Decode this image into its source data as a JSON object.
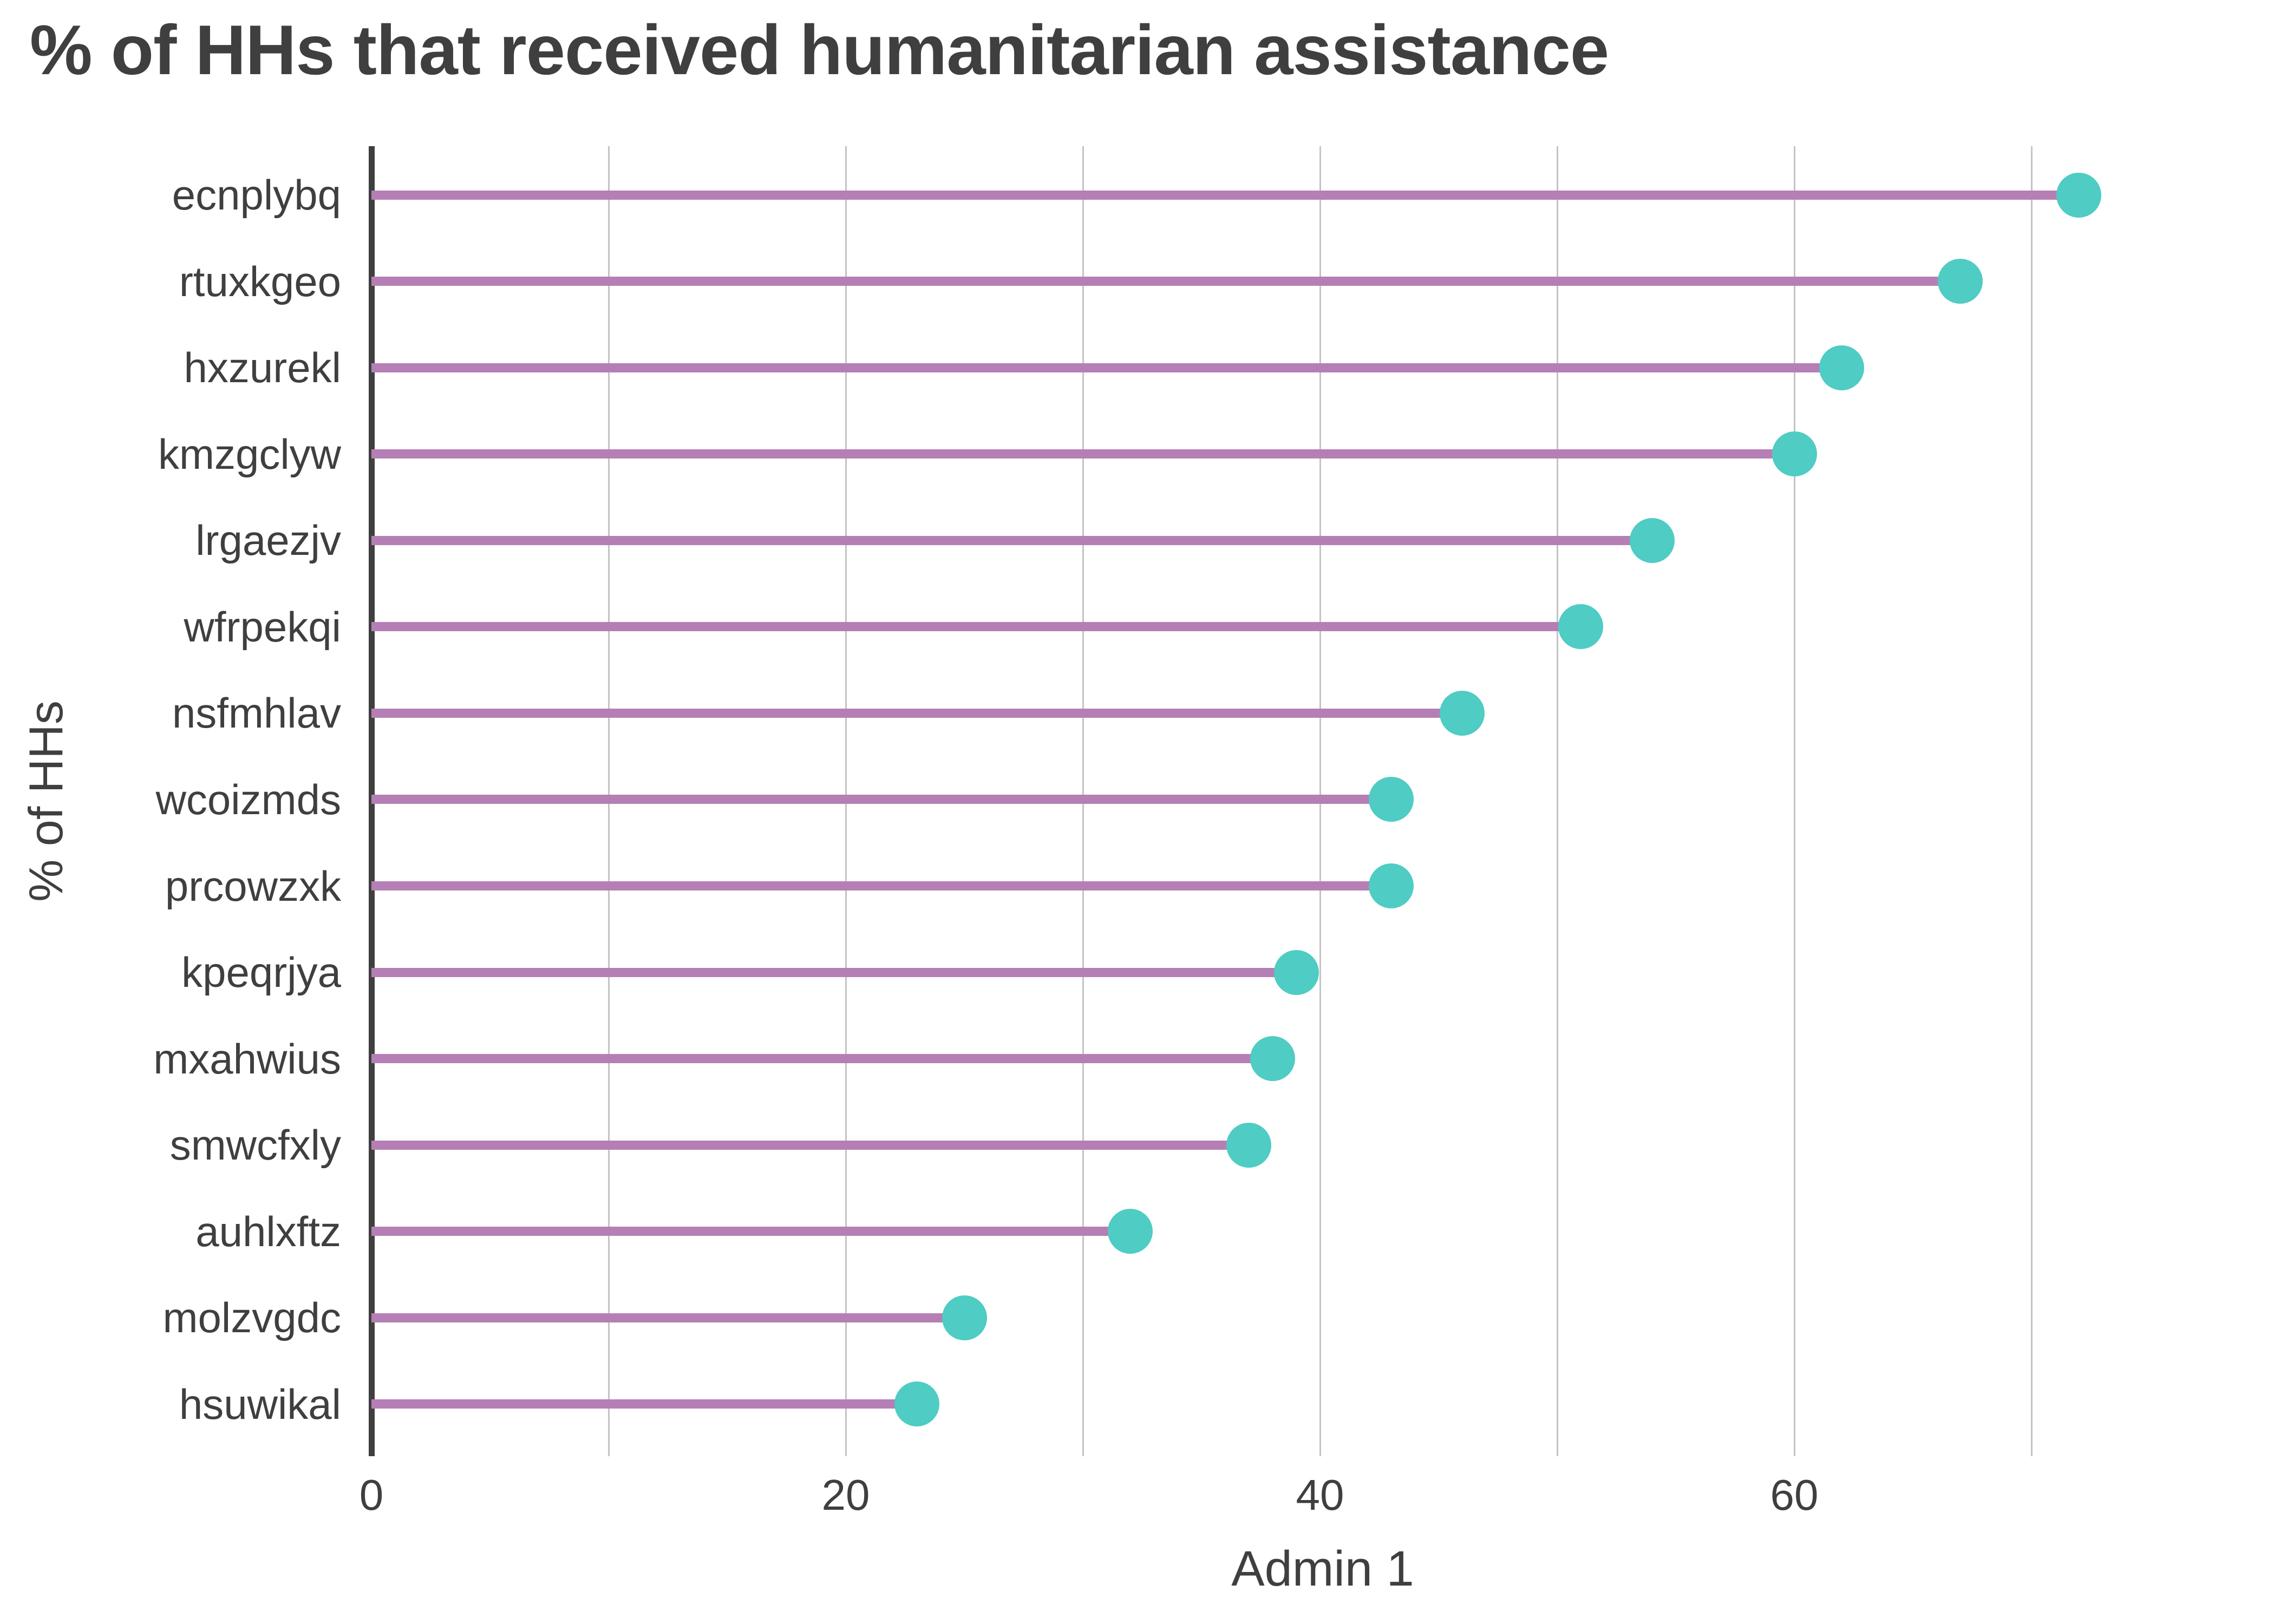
{
  "chart_data": {
    "type": "bar",
    "variant": "horizontal-lollipop",
    "title": "% of HHs that received humanitarian assistance",
    "xlabel": "Admin 1",
    "ylabel": "% of HHs",
    "categories": [
      "ecnplybq",
      "rtuxkgeo",
      "hxzurekl",
      "kmzgclyw",
      "lrgaezjv",
      "wfrpekqi",
      "nsfmhlav",
      "wcoizmds",
      "prcowzxk",
      "kpeqrjya",
      "mxahwius",
      "smwcfxly",
      "auhlxftz",
      "molzvgdc",
      "hsuwikal"
    ],
    "values": [
      72,
      67,
      62,
      60,
      54,
      51,
      46,
      43,
      43,
      39,
      38,
      37,
      32,
      25,
      23
    ],
    "x_ticks": [
      0,
      20,
      40,
      60
    ],
    "x_gridlines": [
      10,
      20,
      30,
      40,
      50,
      60,
      70
    ],
    "xlim": [
      0,
      80
    ],
    "grid": "vertical-only",
    "legend": "none"
  },
  "colors": {
    "dot": "#4FCCC3",
    "stem": "#B57FB5",
    "text": "#3F3F3F",
    "grid": "#C4C4C4",
    "axis": "#3F3F3F",
    "background": "#FFFFFF"
  }
}
